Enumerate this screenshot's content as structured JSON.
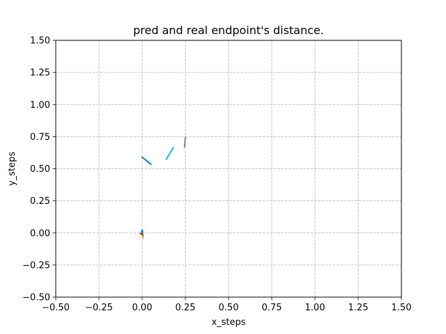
{
  "chart_data": {
    "type": "line",
    "title": "pred and real endpoint's distance.",
    "xlabel": "x_steps",
    "ylabel": "y_steps",
    "xlim": [
      -0.5,
      1.5
    ],
    "ylim": [
      -0.5,
      1.5
    ],
    "xticks": [
      -0.5,
      -0.25,
      0.0,
      0.25,
      0.5,
      0.75,
      1.0,
      1.25,
      1.5
    ],
    "yticks": [
      -0.5,
      -0.25,
      0.0,
      0.25,
      0.5,
      0.75,
      1.0,
      1.25,
      1.5
    ],
    "xtick_labels": [
      "−0.50",
      "−0.25",
      "0.00",
      "0.25",
      "0.50",
      "0.75",
      "1.00",
      "1.25",
      "1.50"
    ],
    "ytick_labels": [
      "−0.50",
      "−0.25",
      "0.00",
      "0.25",
      "0.50",
      "0.75",
      "1.00",
      "1.25",
      "1.50"
    ],
    "grid": true,
    "grid_style": "dashed",
    "legend": false,
    "series": [
      {
        "color": "#1f77b4",
        "x": [
          0.0,
          0.05
        ],
        "y": [
          0.59,
          0.535
        ]
      },
      {
        "color": "#17becf",
        "x": [
          0.14,
          0.18
        ],
        "y": [
          0.575,
          0.665
        ]
      },
      {
        "color": "#7f7f7f",
        "x": [
          0.245,
          0.25
        ],
        "y": [
          0.67,
          0.745
        ]
      },
      {
        "color": "#ff7f0e",
        "x": [
          0.0,
          0.005
        ],
        "y": [
          -0.01,
          -0.03
        ]
      },
      {
        "color": "#2ca02c",
        "x": [
          -0.005,
          0.0
        ],
        "y": [
          0.0,
          0.02
        ]
      },
      {
        "color": "#d62728",
        "x": [
          -0.01,
          0.0
        ],
        "y": [
          -0.005,
          0.0
        ]
      },
      {
        "color": "#9467bd",
        "x": [
          0.0,
          0.005
        ],
        "y": [
          0.005,
          -0.015
        ]
      },
      {
        "color": "#8c564b",
        "x": [
          -0.005,
          0.005
        ],
        "y": [
          -0.01,
          -0.02
        ]
      },
      {
        "color": "#e377c2",
        "x": [
          0.0,
          -0.005
        ],
        "y": [
          0.0,
          0.01
        ]
      },
      {
        "color": "#bcbd22",
        "x": [
          0.0,
          0.005
        ],
        "y": [
          -0.02,
          -0.04
        ]
      },
      {
        "color": "#17becf",
        "x": [
          -0.005,
          0.0
        ],
        "y": [
          0.01,
          0.025
        ]
      },
      {
        "color": "#1f77b4",
        "x": [
          0.0,
          0.003
        ],
        "y": [
          -0.005,
          0.015
        ]
      }
    ]
  }
}
